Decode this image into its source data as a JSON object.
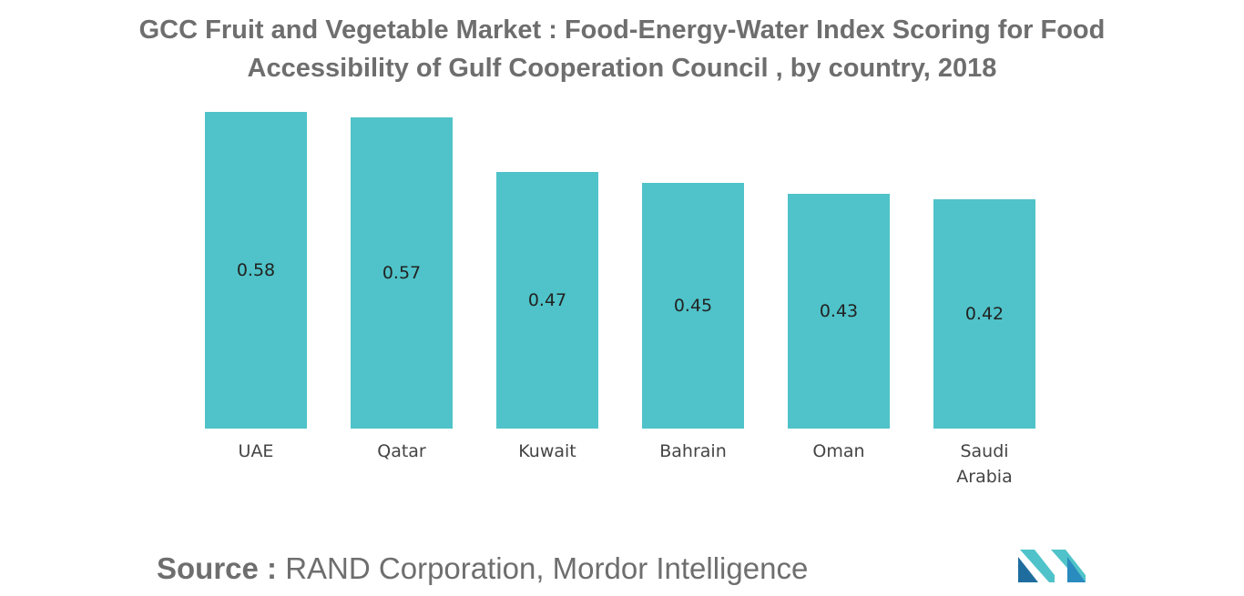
{
  "header": {
    "title_line1": "GCC Fruit and Vegetable Market : Food-Energy-Water Index Scoring for Food",
    "title_line2": "Accessibility of Gulf Cooperation Council , by country, 2018"
  },
  "chart_data": {
    "type": "bar",
    "title": "GCC Fruit and Vegetable Market : Food-Energy-Water Index Scoring for Food Accessibility of Gulf Cooperation Council , by country, 2018",
    "categories": [
      [
        "UAE"
      ],
      [
        "Qatar"
      ],
      [
        "Kuwait"
      ],
      [
        "Bahrain"
      ],
      [
        "Oman"
      ],
      [
        "Saudi",
        "Arabia"
      ]
    ],
    "values": [
      0.58,
      0.57,
      0.47,
      0.45,
      0.43,
      0.42
    ],
    "value_labels": [
      "0.58",
      "0.57",
      "0.47",
      "0.45",
      "0.43",
      "0.42"
    ],
    "xlabel": "",
    "ylabel": "",
    "ylim": [
      0,
      0.58
    ],
    "grid": false,
    "legend": "none",
    "bar_color": "#4fc3c9"
  },
  "footer": {
    "source_label": "Source :",
    "source_text": " RAND Corporation, Mordor Intelligence"
  },
  "logo": {
    "icon": "mordor-intelligence-logo-icon",
    "colors": [
      "#1f6d9e",
      "#4fc3c9",
      "#2a8bbf"
    ]
  }
}
